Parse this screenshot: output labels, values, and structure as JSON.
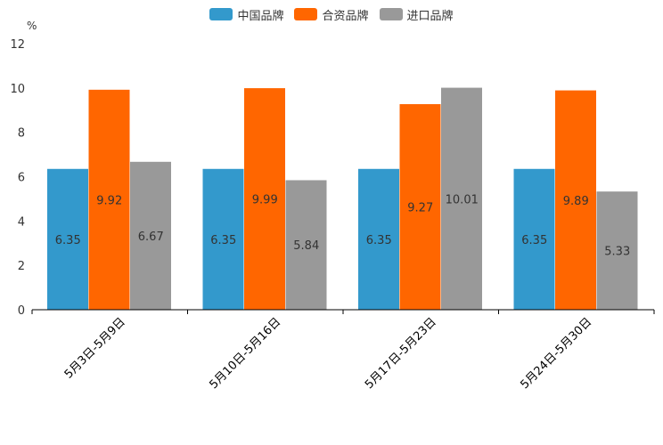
{
  "chart_data": {
    "type": "bar",
    "ylabel": "%",
    "ylim": [
      0,
      12
    ],
    "yticks": [
      "0",
      "2",
      "4",
      "6",
      "8",
      "10",
      "12"
    ],
    "categories": [
      "5月3日-5月9日",
      "5月10日-5月16日",
      "5月17日-5月23日",
      "5月24日-5月30日"
    ],
    "series": [
      {
        "name": "中国品牌",
        "color": "#3399cc",
        "values": [
          6.35,
          6.35,
          6.35,
          6.35
        ],
        "labels": [
          "6.35",
          "6.35",
          "6.35",
          "6.35"
        ]
      },
      {
        "name": "合资品牌",
        "color": "#ff6600",
        "values": [
          9.92,
          9.99,
          9.27,
          9.89
        ],
        "labels": [
          "9.92",
          "9.99",
          "9.27",
          "9.89"
        ]
      },
      {
        "name": "进口品牌",
        "color": "#999999",
        "values": [
          6.67,
          5.84,
          10.01,
          5.33
        ],
        "labels": [
          "6.67",
          "5.84",
          "10.01",
          "5.33"
        ]
      }
    ],
    "legend_position": "top-center",
    "grid": false
  }
}
